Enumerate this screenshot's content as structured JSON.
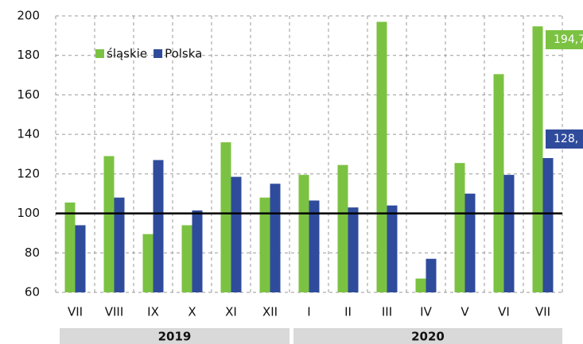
{
  "chart_data": {
    "type": "bar",
    "categories": [
      "VII",
      "VIII",
      "IX",
      "X",
      "XI",
      "XII",
      "I",
      "II",
      "III",
      "IV",
      "V",
      "VI",
      "VII"
    ],
    "series": [
      {
        "name": "śląskie",
        "color": "#7cc242",
        "values": [
          105.5,
          129,
          89.5,
          94,
          136,
          108,
          119.5,
          124.5,
          197,
          67,
          125.5,
          170.5,
          194.7
        ],
        "value_labels": [
          null,
          null,
          null,
          null,
          null,
          null,
          null,
          null,
          null,
          null,
          null,
          null,
          "194,7"
        ]
      },
      {
        "name": "Polska",
        "color": "#2f4b9b",
        "values": [
          94,
          108,
          127,
          101.5,
          118.5,
          115,
          106.5,
          103,
          104,
          77,
          110,
          119.5,
          128
        ],
        "value_labels": [
          null,
          null,
          null,
          null,
          null,
          null,
          null,
          null,
          null,
          null,
          null,
          null,
          "128,"
        ]
      }
    ],
    "years": [
      "2019",
      "2020"
    ],
    "ylim": [
      60,
      200
    ],
    "yticks": [
      60,
      80,
      100,
      120,
      140,
      160,
      180,
      200
    ],
    "reference_line": 100,
    "grid": true,
    "legend": "top-left"
  }
}
